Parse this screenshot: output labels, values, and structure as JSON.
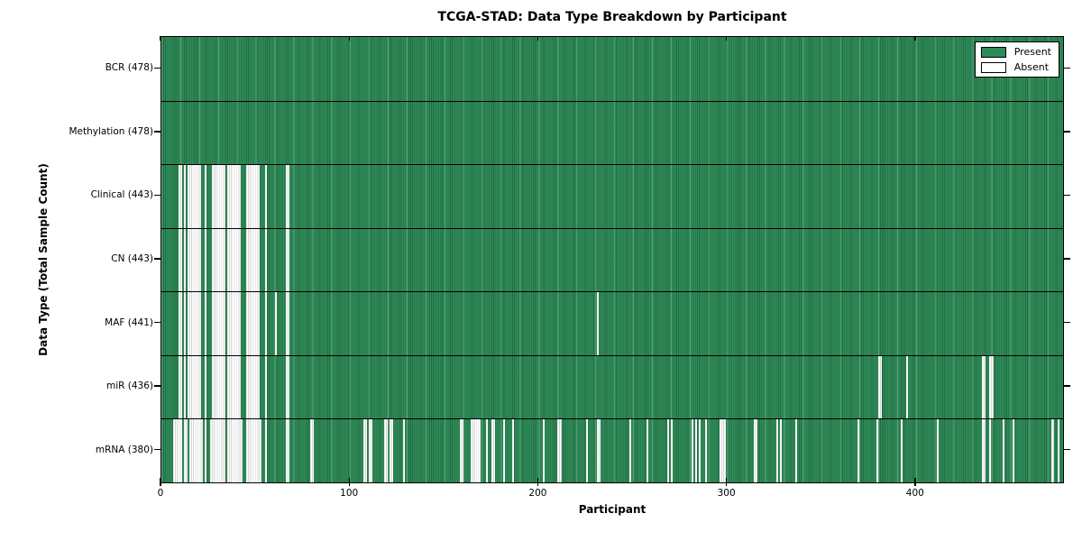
{
  "chart_data": {
    "type": "heatmap",
    "title": "TCGA-STAD: Data Type Breakdown by Participant",
    "xlabel": "Participant",
    "ylabel": "Data Type (Total Sample Count)",
    "n_participants": 478,
    "x_ticks": [
      0,
      100,
      200,
      300,
      400
    ],
    "xlim": [
      0,
      478
    ],
    "grid": false,
    "colors": {
      "present": "#2E8B57",
      "absent": "#FFFFFF",
      "edge": "#000000"
    },
    "legend": {
      "position": "upper right",
      "entries": [
        {
          "label": "Present",
          "color": "#2E8B57"
        },
        {
          "label": "Absent",
          "color": "#FFFFFF"
        }
      ]
    },
    "rows": [
      {
        "name": "BCR",
        "total": 478,
        "absent_ranges": []
      },
      {
        "name": "Methylation",
        "total": 478,
        "absent_ranges": []
      },
      {
        "name": "Clinical",
        "total": 443,
        "absent_ranges": [
          [
            9,
            10
          ],
          [
            12,
            12
          ],
          [
            14,
            20
          ],
          [
            23,
            23
          ],
          [
            27,
            33
          ],
          [
            35,
            41
          ],
          [
            45,
            51
          ],
          [
            55,
            55
          ],
          [
            66,
            67
          ]
        ]
      },
      {
        "name": "CN",
        "total": 443,
        "absent_ranges": [
          [
            9,
            10
          ],
          [
            12,
            12
          ],
          [
            14,
            20
          ],
          [
            23,
            23
          ],
          [
            27,
            33
          ],
          [
            35,
            41
          ],
          [
            45,
            51
          ],
          [
            55,
            55
          ],
          [
            66,
            67
          ]
        ]
      },
      {
        "name": "MAF",
        "total": 441,
        "absent_ranges": [
          [
            9,
            10
          ],
          [
            12,
            12
          ],
          [
            14,
            20
          ],
          [
            23,
            23
          ],
          [
            27,
            33
          ],
          [
            35,
            41
          ],
          [
            45,
            51
          ],
          [
            55,
            55
          ],
          [
            60,
            60
          ],
          [
            66,
            67
          ],
          [
            231,
            231
          ]
        ]
      },
      {
        "name": "miR",
        "total": 436,
        "absent_ranges": [
          [
            9,
            10
          ],
          [
            12,
            12
          ],
          [
            14,
            20
          ],
          [
            23,
            23
          ],
          [
            27,
            33
          ],
          [
            35,
            41
          ],
          [
            45,
            51
          ],
          [
            55,
            55
          ],
          [
            66,
            67
          ],
          [
            380,
            381
          ],
          [
            395,
            395
          ],
          [
            435,
            436
          ],
          [
            439,
            440
          ]
        ]
      },
      {
        "name": "mRNA",
        "total": 380,
        "absent_ranges": [
          [
            6,
            10
          ],
          [
            12,
            13
          ],
          [
            15,
            21
          ],
          [
            23,
            23
          ],
          [
            26,
            33
          ],
          [
            35,
            42
          ],
          [
            45,
            52
          ],
          [
            55,
            55
          ],
          [
            66,
            67
          ],
          [
            79,
            80
          ],
          [
            107,
            108
          ],
          [
            110,
            111
          ],
          [
            118,
            119
          ],
          [
            121,
            122
          ],
          [
            128,
            128
          ],
          [
            158,
            159
          ],
          [
            164,
            168
          ],
          [
            172,
            172
          ],
          [
            175,
            176
          ],
          [
            181,
            181
          ],
          [
            186,
            186
          ],
          [
            202,
            202
          ],
          [
            210,
            211
          ],
          [
            225,
            225
          ],
          [
            231,
            232
          ],
          [
            248,
            248
          ],
          [
            257,
            257
          ],
          [
            268,
            268
          ],
          [
            270,
            270
          ],
          [
            281,
            281
          ],
          [
            283,
            283
          ],
          [
            285,
            285
          ],
          [
            288,
            288
          ],
          [
            296,
            298
          ],
          [
            314,
            315
          ],
          [
            326,
            326
          ],
          [
            328,
            328
          ],
          [
            336,
            336
          ],
          [
            369,
            369
          ],
          [
            379,
            379
          ],
          [
            392,
            392
          ],
          [
            411,
            411
          ],
          [
            435,
            436
          ],
          [
            439,
            439
          ],
          [
            446,
            446
          ],
          [
            451,
            451
          ],
          [
            472,
            472
          ],
          [
            475,
            475
          ]
        ]
      }
    ]
  }
}
